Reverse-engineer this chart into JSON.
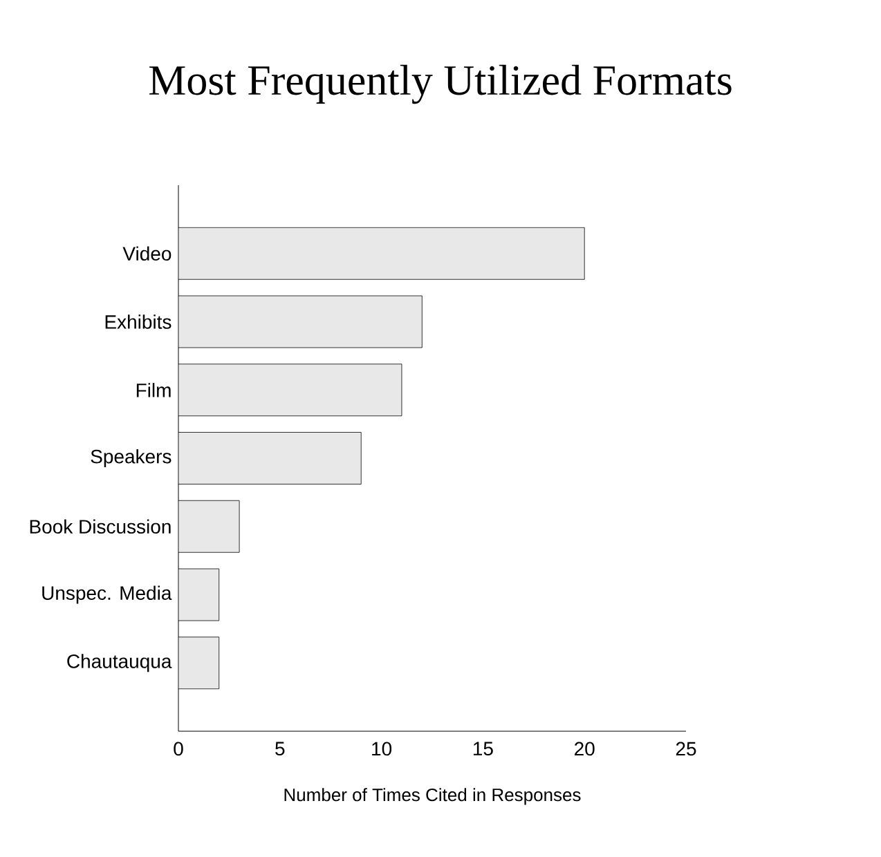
{
  "chart_data": {
    "type": "bar",
    "orientation": "horizontal",
    "title": "Most Frequently Utilized Formats",
    "xlabel": "Number of Times Cited in Responses",
    "categories": [
      "Video",
      "Exhibits",
      "Film",
      "Speakers",
      "Book Discussion",
      "Unspec. Media",
      "Chautauqua"
    ],
    "values": [
      20,
      12,
      11,
      9,
      3,
      2,
      2
    ],
    "color": "#e8e8e8",
    "xlim": [
      0,
      25
    ],
    "xticks": [
      0,
      5,
      10,
      15,
      20,
      25
    ]
  }
}
